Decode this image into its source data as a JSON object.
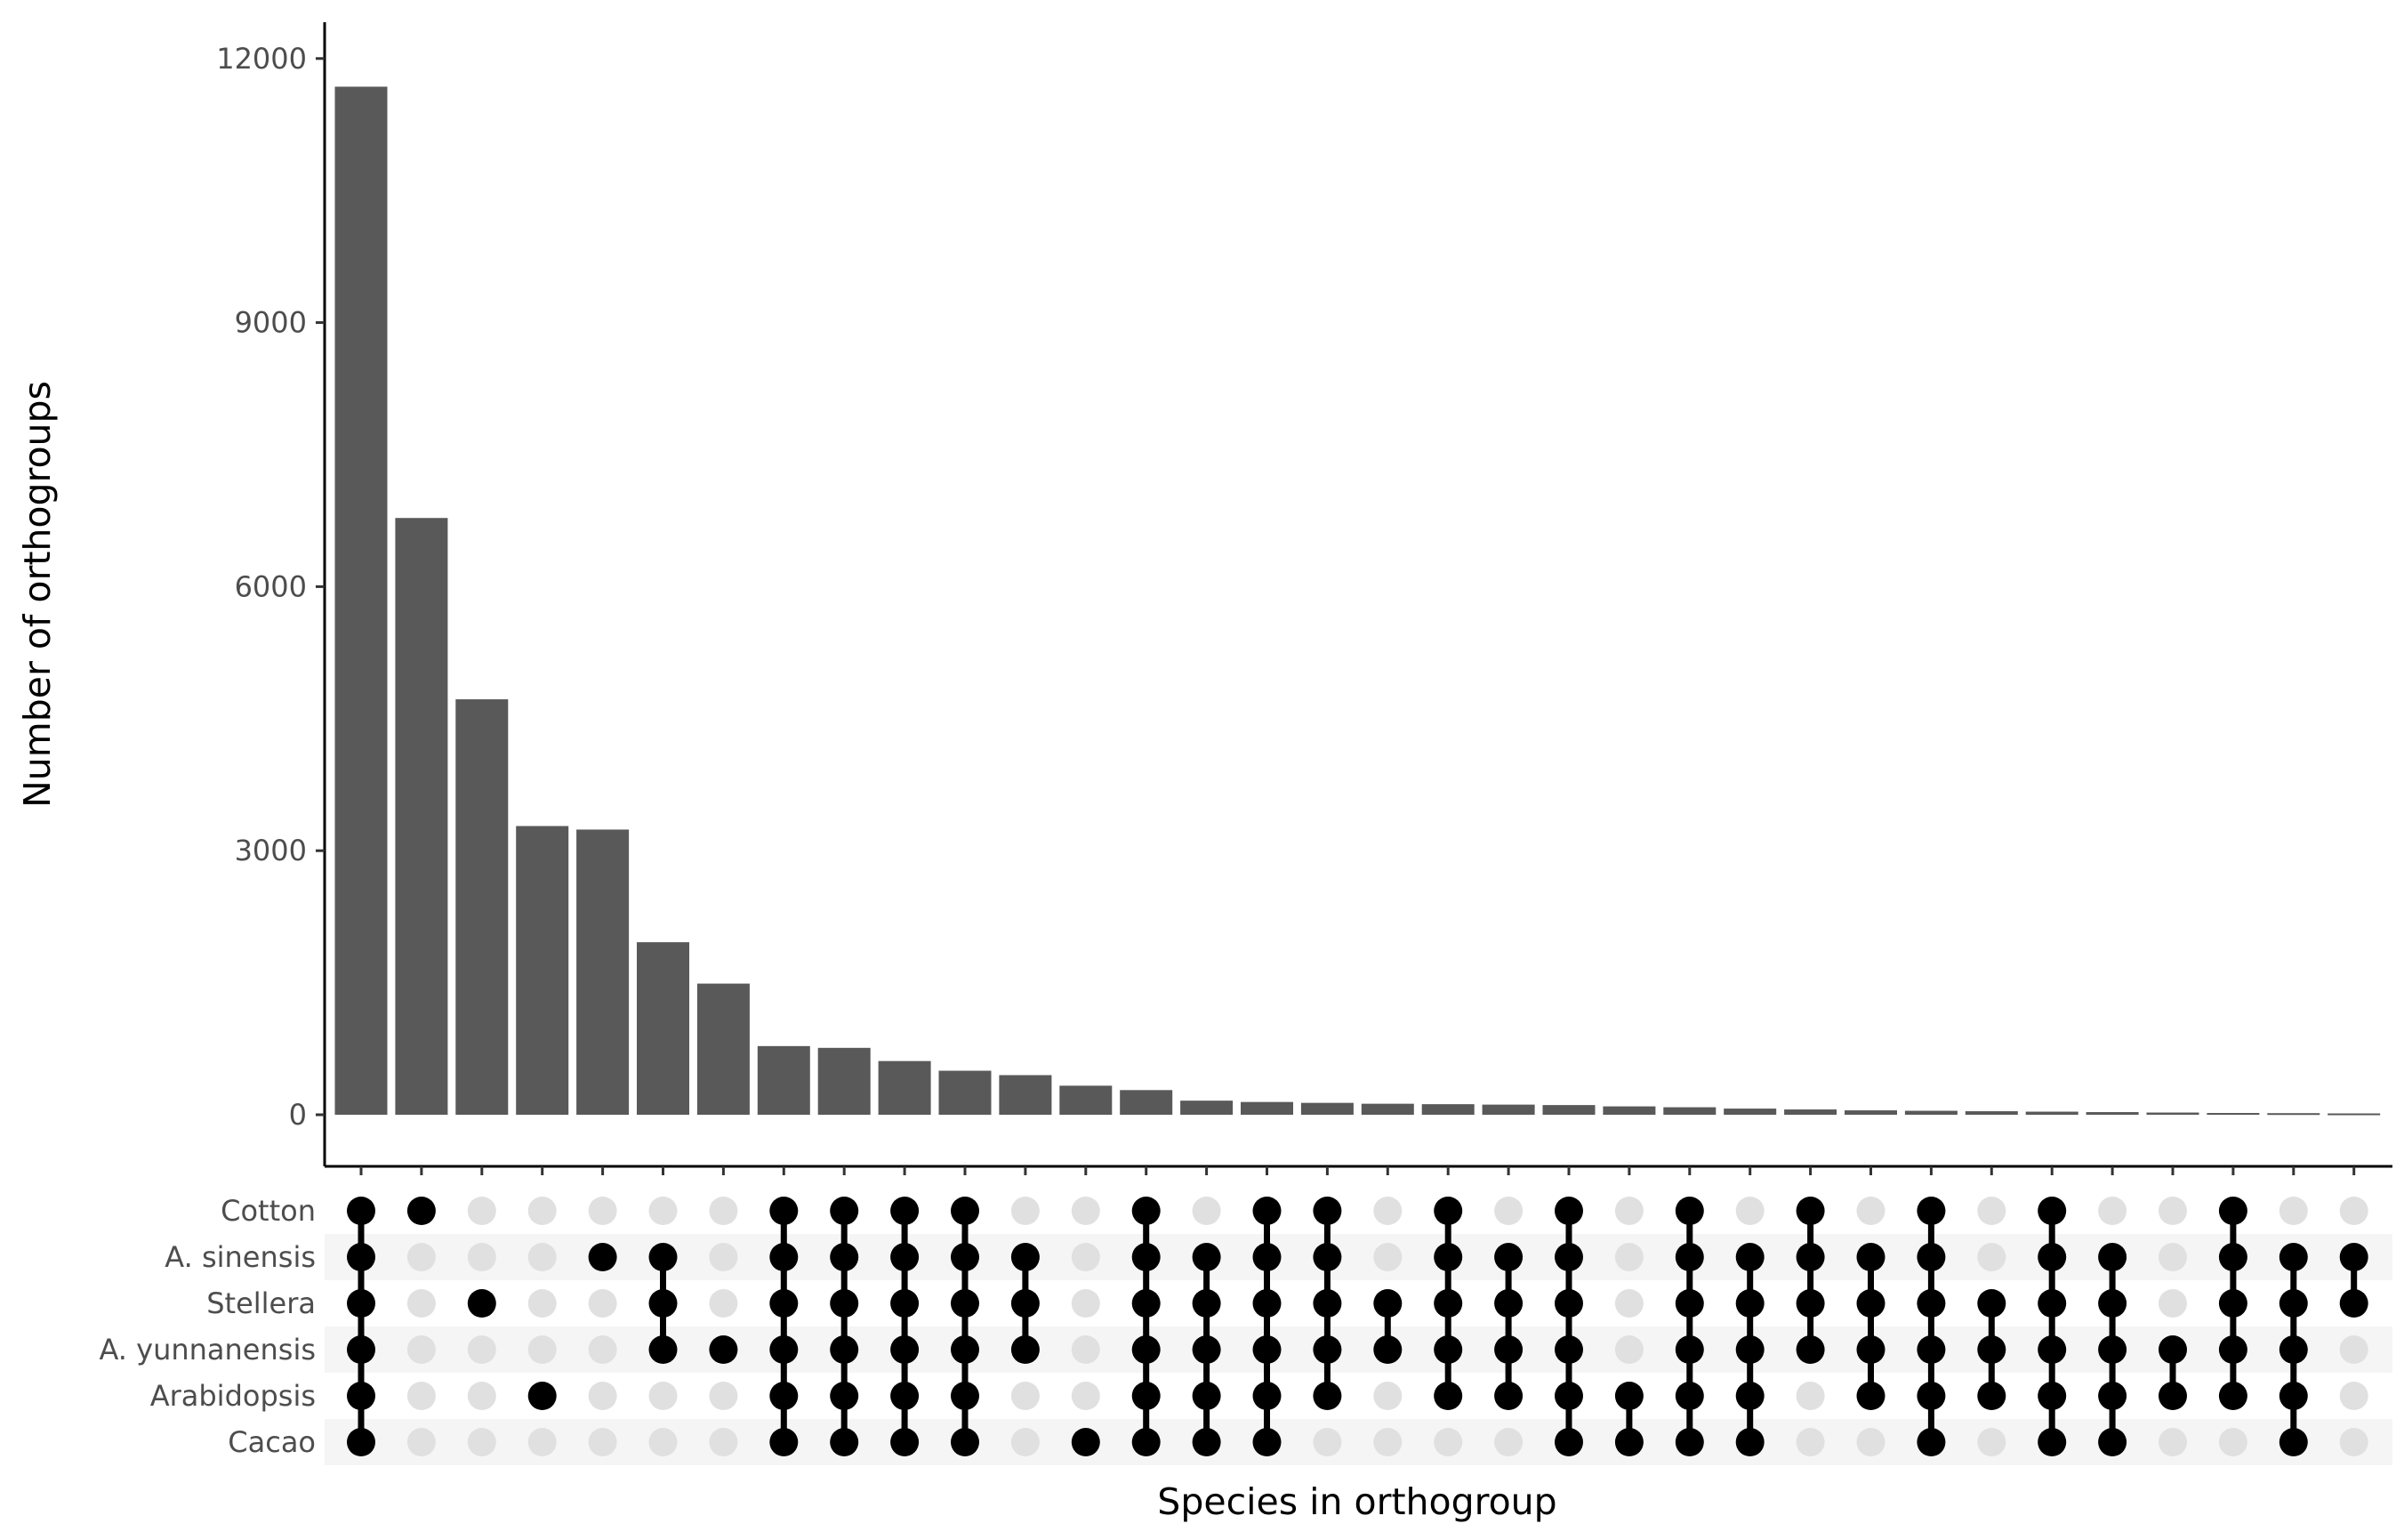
{
  "chart_data": {
    "type": "bar",
    "xlabel": "Species in orthogroup",
    "ylabel": "Number of orthogroups",
    "ylim": [
      0,
      12200
    ],
    "yticks": [
      0,
      3000,
      6000,
      9000,
      12000
    ],
    "grid": false,
    "bar_color": "#595959",
    "dot_active_color": "#000000",
    "dot_inactive_color": "#e0e0e0",
    "stripe_color": "#f5f5f5",
    "sets": [
      "Cotton",
      "A. sinensis",
      "Stellera",
      "A. yunnanensis",
      "Arabidopsis",
      "Cacao"
    ],
    "values": [
      11680,
      6780,
      4720,
      3280,
      3240,
      1960,
      1490,
      780,
      760,
      610,
      500,
      450,
      330,
      280,
      160,
      145,
      135,
      125,
      120,
      115,
      110,
      95,
      85,
      70,
      60,
      50,
      45,
      40,
      35,
      30,
      25,
      20,
      18,
      15
    ],
    "memberships": [
      [
        1,
        1,
        1,
        1,
        1,
        1
      ],
      [
        1,
        0,
        0,
        0,
        0,
        0
      ],
      [
        0,
        0,
        1,
        0,
        0,
        0
      ],
      [
        0,
        0,
        0,
        0,
        1,
        0
      ],
      [
        0,
        1,
        0,
        0,
        0,
        0
      ],
      [
        0,
        1,
        1,
        1,
        0,
        0
      ],
      [
        0,
        0,
        0,
        1,
        0,
        0
      ],
      [
        1,
        1,
        1,
        1,
        1,
        1
      ],
      [
        1,
        1,
        1,
        1,
        1,
        1
      ],
      [
        1,
        1,
        1,
        1,
        1,
        1
      ],
      [
        1,
        1,
        1,
        1,
        1,
        1
      ],
      [
        0,
        1,
        1,
        1,
        0,
        0
      ],
      [
        0,
        0,
        0,
        0,
        0,
        1
      ],
      [
        1,
        1,
        1,
        1,
        1,
        1
      ],
      [
        0,
        1,
        1,
        1,
        1,
        1
      ],
      [
        1,
        1,
        1,
        1,
        1,
        1
      ],
      [
        1,
        1,
        1,
        1,
        1,
        0
      ],
      [
        0,
        0,
        1,
        1,
        0,
        0
      ],
      [
        1,
        1,
        1,
        1,
        1,
        0
      ],
      [
        0,
        1,
        1,
        1,
        1,
        0
      ],
      [
        1,
        1,
        1,
        1,
        1,
        1
      ],
      [
        0,
        0,
        0,
        0,
        1,
        1
      ],
      [
        1,
        1,
        1,
        1,
        1,
        1
      ],
      [
        0,
        1,
        1,
        1,
        1,
        1
      ],
      [
        1,
        1,
        1,
        1,
        0,
        0
      ],
      [
        0,
        1,
        1,
        1,
        1,
        0
      ],
      [
        1,
        1,
        1,
        1,
        1,
        1
      ],
      [
        0,
        0,
        1,
        1,
        1,
        0
      ],
      [
        1,
        1,
        1,
        1,
        1,
        1
      ],
      [
        0,
        1,
        1,
        1,
        1,
        1
      ],
      [
        0,
        0,
        0,
        1,
        1,
        0
      ],
      [
        1,
        1,
        1,
        1,
        1,
        0
      ],
      [
        0,
        1,
        1,
        1,
        1,
        1
      ],
      [
        0,
        1,
        1,
        0,
        0,
        0
      ]
    ]
  }
}
